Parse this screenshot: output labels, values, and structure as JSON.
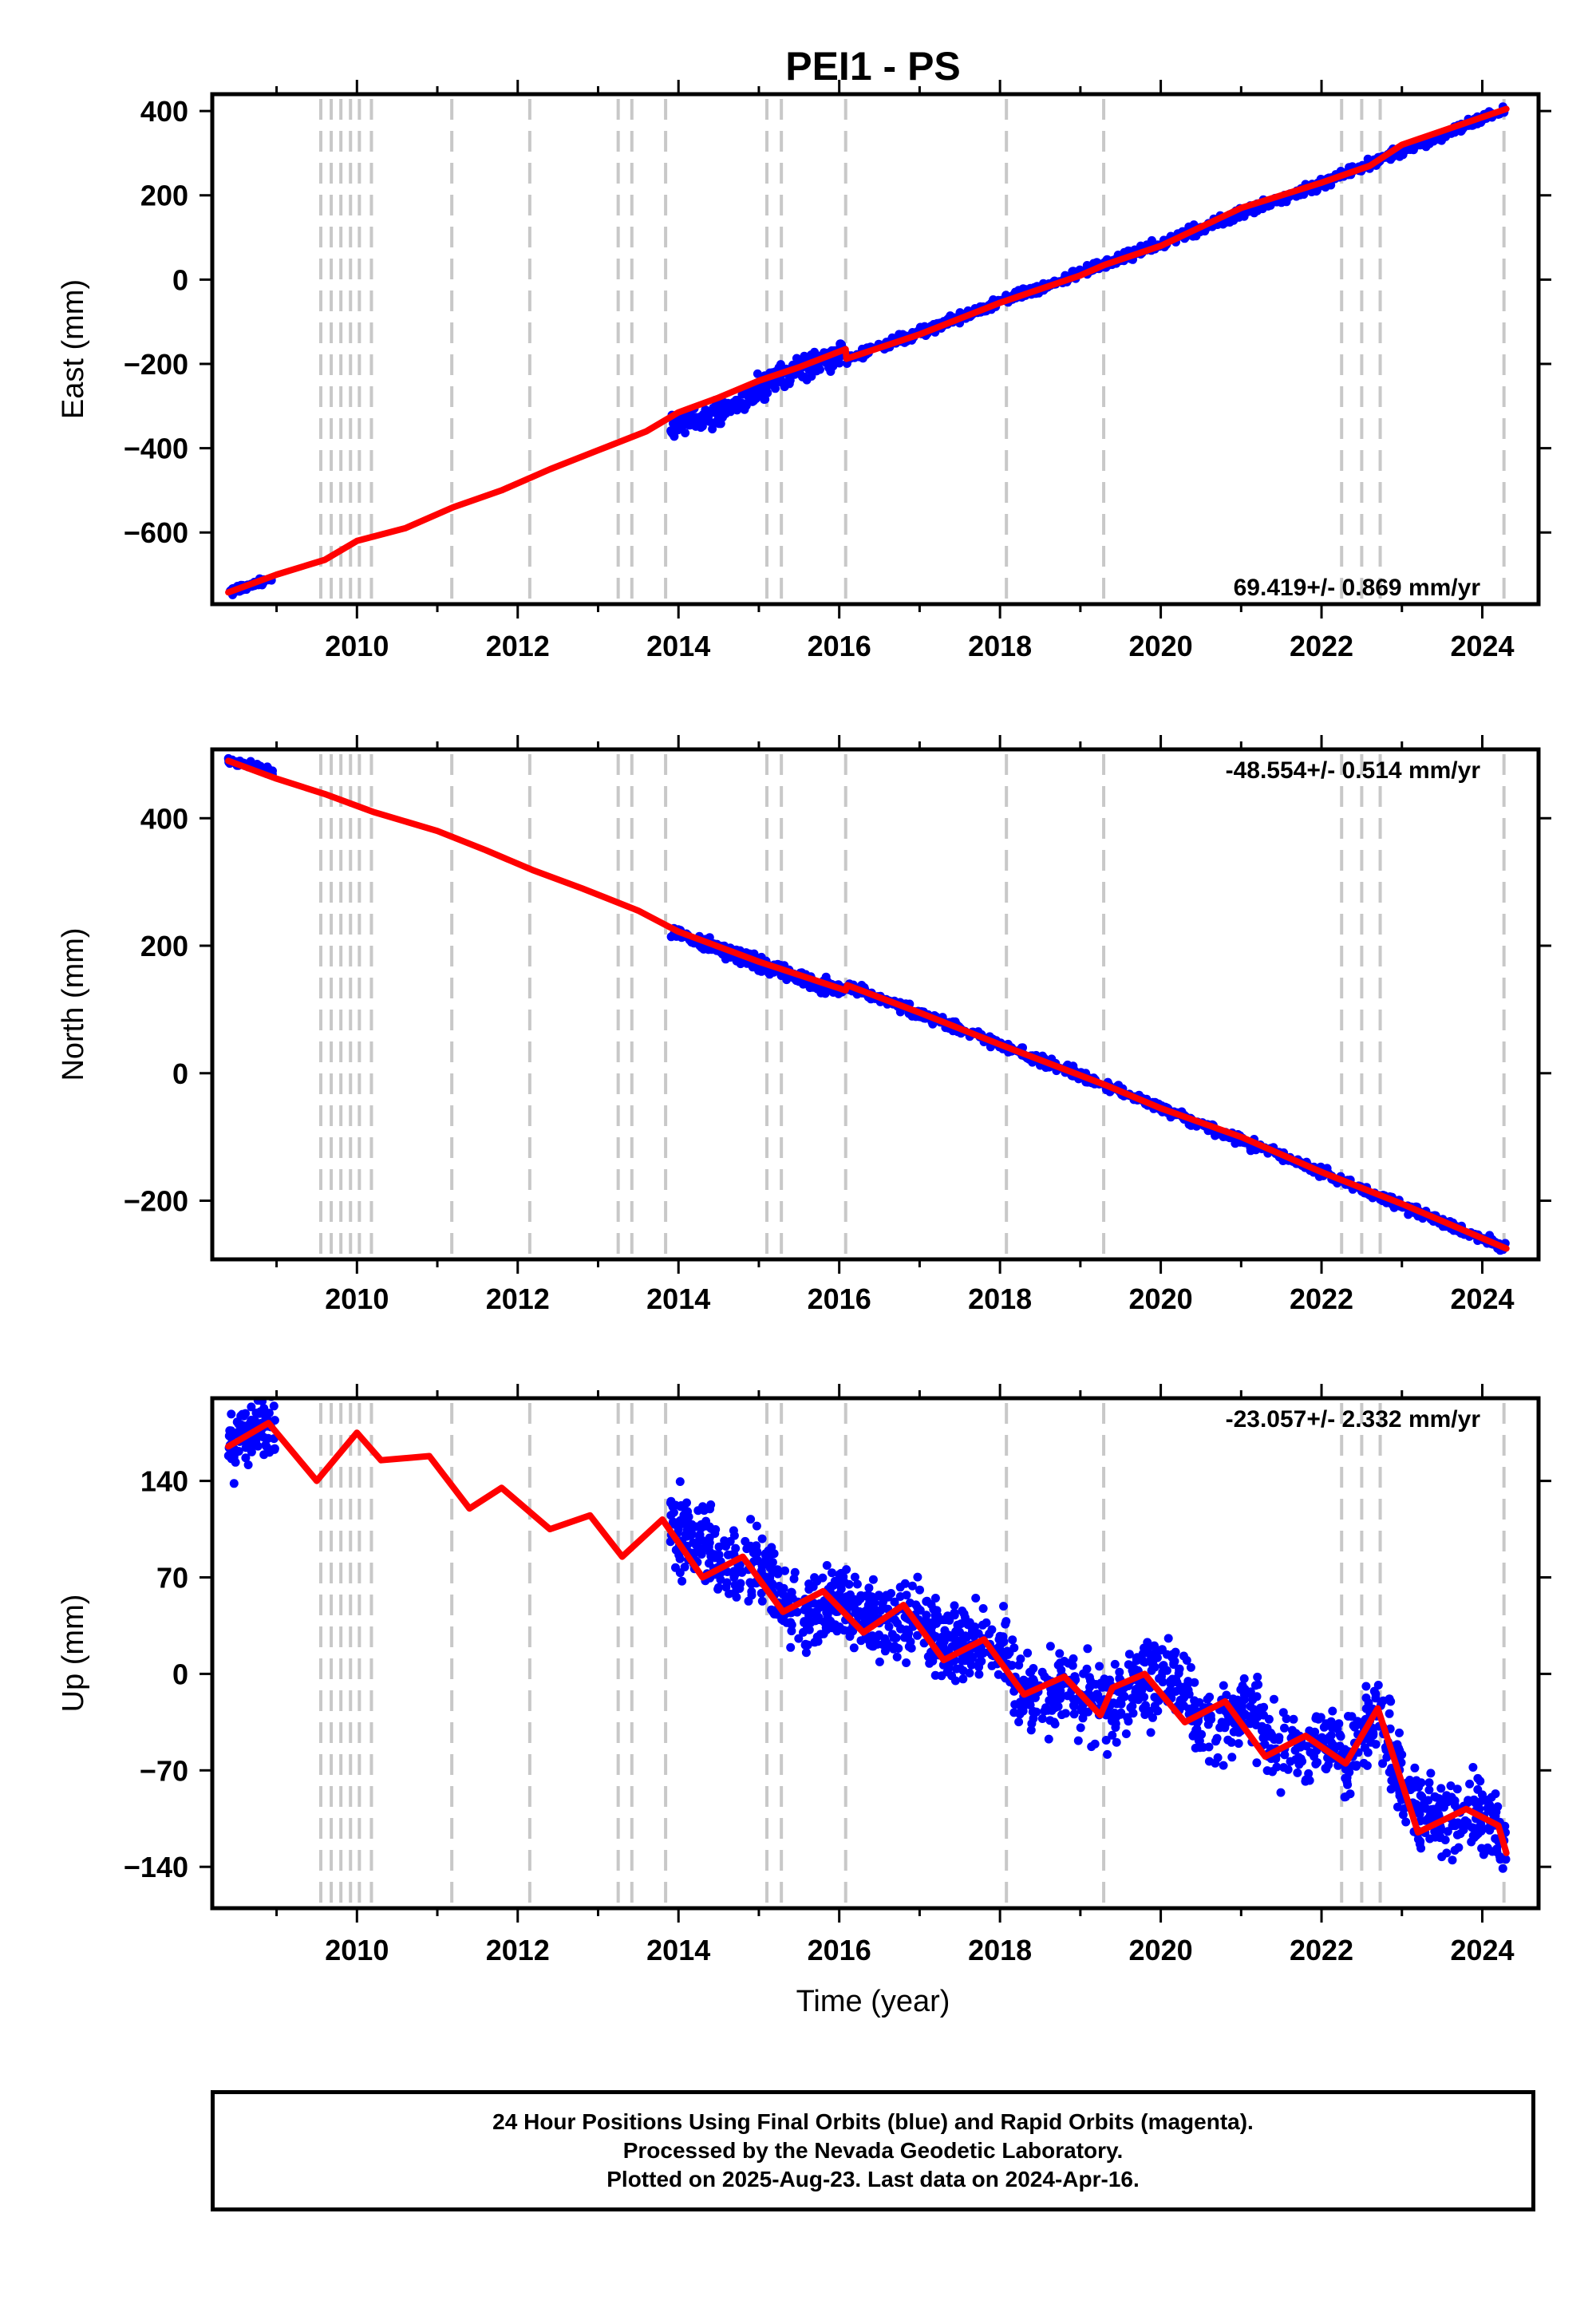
{
  "chart_data": {
    "type": "scatter",
    "title": "PEI1 - PS",
    "xlabel": "Time (year)",
    "xlim": [
      2008.2,
      2024.7
    ],
    "xticks": [
      2010,
      2012,
      2014,
      2016,
      2018,
      2020,
      2022,
      2024
    ],
    "steps": [
      2009.55,
      2009.68,
      2009.8,
      2009.92,
      2010.03,
      2010.18,
      2011.18,
      2012.15,
      2013.25,
      2013.42,
      2013.84,
      2015.1,
      2015.28,
      2016.08,
      2018.08,
      2019.29,
      2022.25,
      2022.5,
      2022.73,
      2024.27
    ],
    "panels": [
      {
        "ylabel": "East (mm)",
        "ylim": [
          -770,
          440
        ],
        "yticks": [
          400,
          200,
          0,
          -200,
          -400,
          -600
        ],
        "rate": "69.419+/- 0.869 mm/yr",
        "series": [
          {
            "name": "Final Orbits",
            "color": "#0000ff",
            "kind": "dots",
            "segments": [
              {
                "x": [
                  2008.4,
                  2008.7,
                  2008.95
                ],
                "y": [
                  -742,
                  -725,
                  -707
                ],
                "noise": 4,
                "count": 70
              },
              {
                "x": [
                  2013.9,
                  2014.3,
                  2014.7,
                  2015.0,
                  2015.5,
                  2016.08
                ],
                "y": [
                  -345,
                  -330,
                  -300,
                  -255,
                  -210,
                  -175
                ],
                "noise": 14,
                "count": 260
              },
              {
                "x": [
                  2016.08,
                  2018.0,
                  2020.0,
                  2022.0,
                  2024.3
                ],
                "y": [
                  -190,
                  -55,
                  85,
                  228,
                  405
                ],
                "noise": 6,
                "count": 700
              }
            ]
          },
          {
            "name": "Model Fit",
            "color": "#ff0000",
            "kind": "line",
            "points": [
              [
                2008.4,
                -742
              ],
              [
                2009.0,
                -700
              ],
              [
                2009.6,
                -665
              ],
              [
                2010.0,
                -620
              ],
              [
                2010.6,
                -590
              ],
              [
                2011.2,
                -540
              ],
              [
                2011.8,
                -500
              ],
              [
                2012.4,
                -450
              ],
              [
                2013.0,
                -405
              ],
              [
                2013.6,
                -360
              ],
              [
                2014.0,
                -315
              ],
              [
                2014.5,
                -280
              ],
              [
                2015.0,
                -240
              ],
              [
                2015.5,
                -208
              ],
              [
                2016.08,
                -165
              ],
              [
                2016.09,
                -188
              ],
              [
                2017.0,
                -130
              ],
              [
                2018.0,
                -55
              ],
              [
                2019.0,
                10
              ],
              [
                2019.3,
                35
              ],
              [
                2020.0,
                80
              ],
              [
                2021.0,
                170
              ],
              [
                2022.0,
                230
              ],
              [
                2022.6,
                270
              ],
              [
                2023.0,
                320
              ],
              [
                2024.3,
                405
              ]
            ]
          }
        ]
      },
      {
        "ylabel": "North (mm)",
        "ylim": [
          -292,
          508
        ],
        "yticks": [
          400,
          200,
          0,
          -200
        ],
        "rate": "-48.554+/- 0.514 mm/yr",
        "series": [
          {
            "name": "Final Orbits",
            "color": "#0000ff",
            "kind": "dots",
            "segments": [
              {
                "x": [
                  2008.4,
                  2008.7,
                  2008.95
                ],
                "y": [
                  490,
                  484,
                  472
                ],
                "noise": 3,
                "count": 60
              },
              {
                "x": [
                  2013.9,
                  2014.5,
                  2015.0,
                  2016.08
                ],
                "y": [
                  222,
                  195,
                  170,
                  128
                ],
                "noise": 6,
                "count": 240
              },
              {
                "x": [
                  2016.08,
                  2018.0,
                  2019.3,
                  2020.0,
                  2022.0,
                  2024.3
                ],
                "y": [
                  138,
                  45,
                  -18,
                  -55,
                  -155,
                  -275
                ],
                "noise": 4,
                "count": 640
              }
            ]
          },
          {
            "name": "Model Fit",
            "color": "#ff0000",
            "kind": "line",
            "points": [
              [
                2008.4,
                490
              ],
              [
                2009.0,
                462
              ],
              [
                2009.6,
                438
              ],
              [
                2010.2,
                410
              ],
              [
                2011.0,
                380
              ],
              [
                2011.6,
                350
              ],
              [
                2012.2,
                318
              ],
              [
                2012.8,
                290
              ],
              [
                2013.5,
                255
              ],
              [
                2014.0,
                222
              ],
              [
                2015.0,
                175
              ],
              [
                2016.08,
                130
              ],
              [
                2016.1,
                138
              ],
              [
                2017.0,
                95
              ],
              [
                2018.0,
                45
              ],
              [
                2019.3,
                -18
              ],
              [
                2020.0,
                -55
              ],
              [
                2021.0,
                -100
              ],
              [
                2022.0,
                -155
              ],
              [
                2023.0,
                -205
              ],
              [
                2024.3,
                -275
              ]
            ]
          }
        ]
      },
      {
        "ylabel": "Up (mm)",
        "ylim": [
          -170,
          200
        ],
        "yticks": [
          140,
          70,
          0,
          -70,
          -140
        ],
        "rate": "-23.057+/- 2.332 mm/yr",
        "series": [
          {
            "name": "Final Orbits",
            "color": "#0000ff",
            "kind": "dots",
            "segments": [
              {
                "x": [
                  2008.4,
                  2008.6,
                  2008.8,
                  2008.98
                ],
                "y": [
                  165,
                  170,
                  182,
                  180
                ],
                "noise": 12,
                "count": 110
              },
              {
                "x": [
                  2013.9,
                  2014.2,
                  2014.5,
                  2014.8,
                  2015.0,
                  2015.3,
                  2015.6,
                  2016.0,
                  2016.4,
                  2016.6,
                  2017.0,
                  2017.3,
                  2017.6,
                  2018.0,
                  2018.2,
                  2018.5,
                  2018.8,
                  2019.2,
                  2019.5,
                  2019.8,
                  2020.1,
                  2020.5,
                  2020.8,
                  2021.2,
                  2021.4,
                  2021.8,
                  2022.1,
                  2022.3,
                  2022.7,
                  2023.0,
                  2023.3,
                  2023.6,
                  2024.0,
                  2024.3
                ],
                "y": [
                  105,
                  100,
                  80,
                  75,
                  80,
                  50,
                  40,
                  55,
                  40,
                  30,
                  45,
                  20,
                  20,
                  25,
                  -5,
                  -15,
                  -10,
                  -20,
                  -25,
                  -5,
                  0,
                  -35,
                  -30,
                  -25,
                  -55,
                  -50,
                  -45,
                  -65,
                  -30,
                  -75,
                  -110,
                  -105,
                  -100,
                  -125
                ],
                "noise": 14,
                "count": 1500
              }
            ]
          },
          {
            "name": "Model Fit",
            "color": "#ff0000",
            "kind": "line",
            "points": [
              [
                2008.4,
                165
              ],
              [
                2008.9,
                182
              ],
              [
                2009.5,
                140
              ],
              [
                2010.0,
                175
              ],
              [
                2010.3,
                155
              ],
              [
                2010.9,
                158
              ],
              [
                2011.4,
                120
              ],
              [
                2011.8,
                135
              ],
              [
                2012.4,
                105
              ],
              [
                2012.9,
                115
              ],
              [
                2013.3,
                85
              ],
              [
                2013.8,
                112
              ],
              [
                2014.3,
                70
              ],
              [
                2014.8,
                85
              ],
              [
                2015.3,
                45
              ],
              [
                2015.8,
                60
              ],
              [
                2016.3,
                30
              ],
              [
                2016.8,
                50
              ],
              [
                2017.3,
                10
              ],
              [
                2017.8,
                25
              ],
              [
                2018.3,
                -15
              ],
              [
                2018.8,
                -2
              ],
              [
                2019.25,
                -30
              ],
              [
                2019.4,
                -10
              ],
              [
                2019.8,
                0
              ],
              [
                2020.3,
                -35
              ],
              [
                2020.8,
                -20
              ],
              [
                2021.3,
                -60
              ],
              [
                2021.8,
                -45
              ],
              [
                2022.3,
                -65
              ],
              [
                2022.7,
                -25
              ],
              [
                2023.2,
                -115
              ],
              [
                2023.8,
                -98
              ],
              [
                2024.2,
                -110
              ],
              [
                2024.3,
                -130
              ]
            ]
          }
        ]
      }
    ]
  },
  "footer": {
    "line1": "24 Hour Positions Using Final Orbits (blue) and Rapid Orbits (magenta).",
    "line2": "Processed by the Nevada Geodetic Laboratory.",
    "line3": "Plotted on 2025-Aug-23. Last data on 2024-Apr-16."
  }
}
